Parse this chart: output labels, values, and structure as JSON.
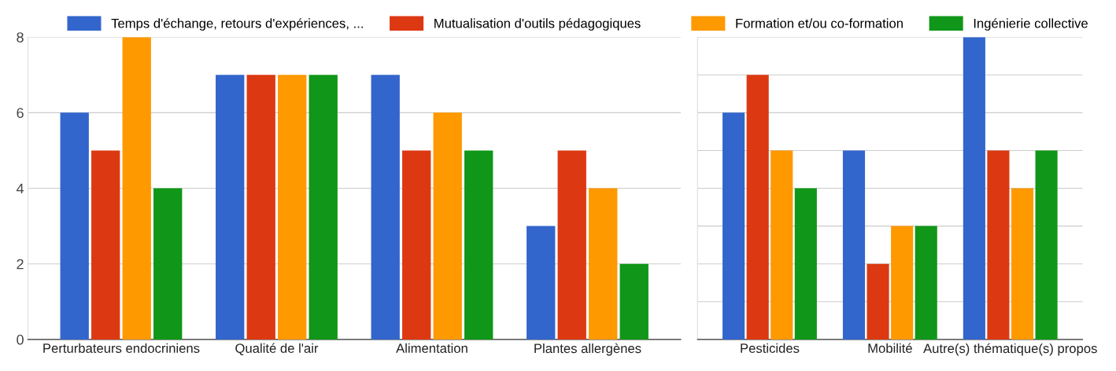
{
  "chart_data": [
    {
      "type": "bar",
      "categories": [
        "Perturbateurs endocriniens",
        "Qualité de l'air",
        "Alimentation",
        "Plantes allergènes"
      ],
      "series": [
        {
          "name": "Temps d'échange, retours d'expériences, ...",
          "color": "#3366cc",
          "values": [
            6,
            7,
            7,
            3
          ]
        },
        {
          "name": "Mutualisation d'outils pédagogiques",
          "color": "#dc3912",
          "values": [
            5,
            7,
            5,
            5
          ]
        },
        {
          "color": "#ff9900",
          "values": [
            8,
            7,
            6,
            4
          ]
        },
        {
          "color": "#109618",
          "values": [
            4,
            7,
            5,
            2
          ]
        }
      ],
      "ylim": [
        0,
        8
      ],
      "yticks": [
        0,
        2,
        4,
        6,
        8
      ],
      "grid": "y",
      "legend": "top"
    },
    {
      "type": "bar",
      "categories": [
        "Pesticides",
        "Mobilité",
        "Autre(s) thématique(s) propos"
      ],
      "series": [
        {
          "color": "#3366cc",
          "values": [
            6,
            5,
            8
          ]
        },
        {
          "color": "#dc3912",
          "values": [
            7,
            2,
            5
          ]
        },
        {
          "name": "Formation et/ou co-formation",
          "color": "#ff9900",
          "values": [
            5,
            3,
            4
          ]
        },
        {
          "name": "Ingénierie collective",
          "color": "#109618",
          "values": [
            4,
            3,
            5
          ]
        }
      ],
      "ylim": [
        0,
        8
      ],
      "yticks": [
        {
          "value": 0,
          "label": null
        },
        {
          "value": 1,
          "label": null
        },
        {
          "value": 2,
          "label": null
        },
        {
          "value": 3,
          "label": null
        },
        {
          "value": 4,
          "label": null
        },
        {
          "value": 5,
          "label": null
        },
        {
          "value": 6,
          "label": null
        },
        {
          "value": 7,
          "label": null
        },
        {
          "value": 8,
          "label": null
        }
      ],
      "grid": "y",
      "legend": "top",
      "tick_labels": "x"
    }
  ]
}
